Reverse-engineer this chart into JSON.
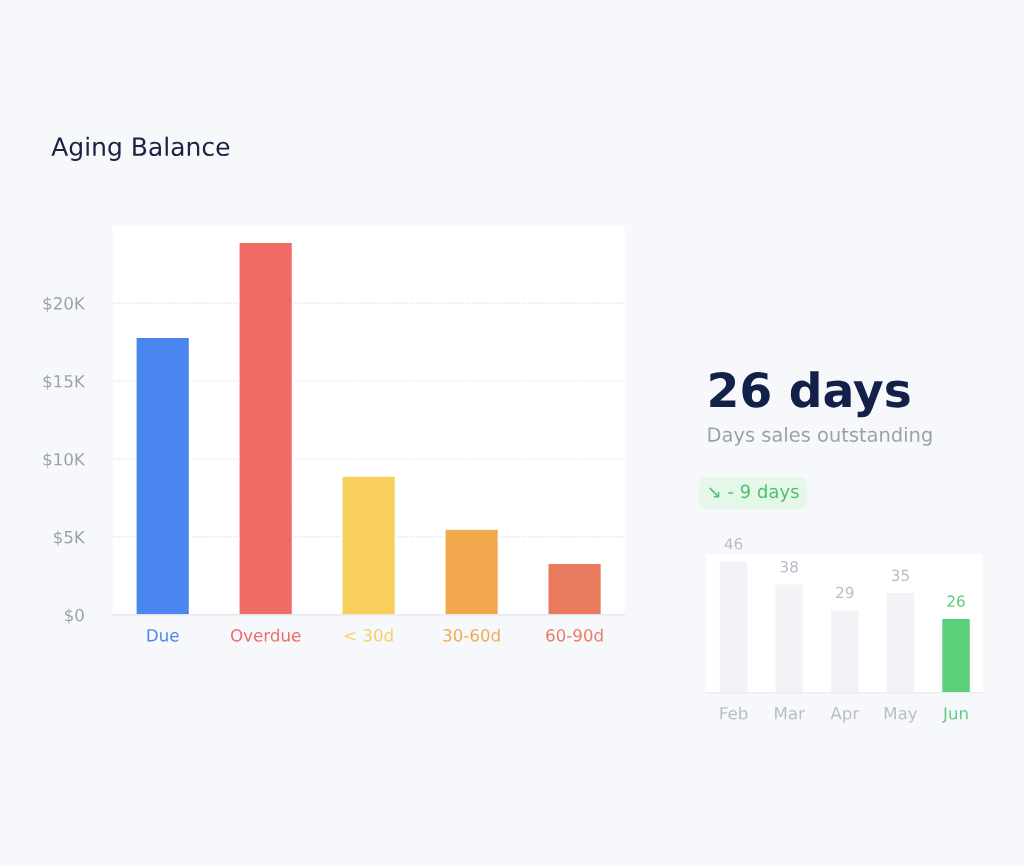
{
  "chart_data": [
    {
      "type": "bar",
      "title": "Aging Balance",
      "categories": [
        "Due",
        "Overdue",
        "< 30d",
        "30-60d",
        "60-90d"
      ],
      "values": [
        17800,
        23900,
        8900,
        5500,
        3300
      ],
      "colors": [
        "#4a86f0",
        "#ee6b66",
        "#f7cf5a",
        "#f2a94e",
        "#ea7a5e"
      ],
      "ylim": [
        0,
        25000
      ],
      "yticks": [
        {
          "value": 0,
          "label": "$0"
        },
        {
          "value": 5000,
          "label": "$5K"
        },
        {
          "value": 10000,
          "label": "$10K"
        },
        {
          "value": 15000,
          "label": "$15K"
        },
        {
          "value": 20000,
          "label": "$20K"
        }
      ],
      "grid": "y"
    },
    {
      "type": "bar",
      "title": "26 days",
      "subtitle": "Days sales outstanding",
      "annotations": [
        "↘ - 9 days"
      ],
      "categories": [
        "Feb",
        "Mar",
        "Apr",
        "May",
        "Jun"
      ],
      "values": [
        46,
        38,
        29,
        35,
        26
      ],
      "colors": [
        "#f2f3f6",
        "#f2f3f6",
        "#f2f3f6",
        "#f2f3f6",
        "#5ccf7a"
      ],
      "data_labels": true,
      "tick_labels": "x"
    }
  ]
}
